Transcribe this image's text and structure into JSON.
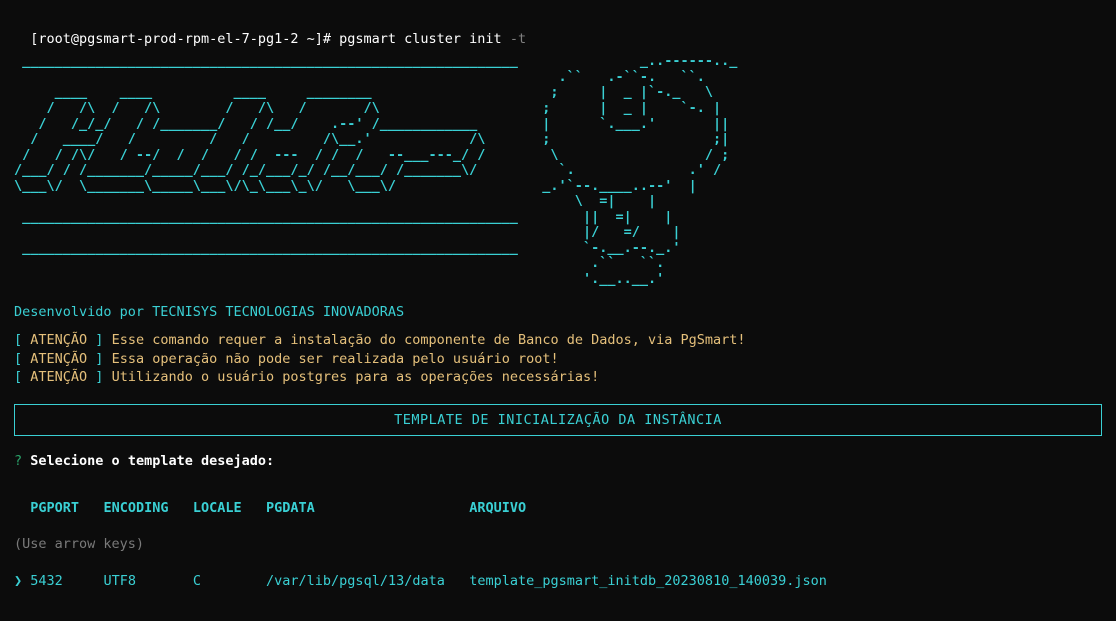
{
  "prompt": {
    "host_segment": "[root@pgsmart-prod-rpm-el-7-pg1-2 ~]# ",
    "command_main": "pgsmart cluster init ",
    "command_flag": "-t"
  },
  "ascii_art": " _____________________________________________________________               _..------.._\n                                                                   .``   .-``-.   ``.\n     ____    ____          ____     ________                      ;     |  _ |`-._   \\\n    /   /\\  /   /\\        /   /\\   /       /\\                    ;      |  _ |    `-. |\n   /   /_/_/   / /_______/   / /__/    .--' /____________        |      `.___.'       ||\n  /   ____/   /         /   /         /\\__.'            /\\       ;                    ;|\n /   / /\\/   / --/  /  /   / /  ---  / /  /   --___---_/ /        \\                  / ;\n/___/ / /_______/_____/___/ /_/___/_/ /__/___/ /_______\\/          `.              .' /\n\\___\\/  \\_______\\_____\\___\\/\\_\\___\\_\\/   \\___\\/                  _.'`--.____..--'  |\n                                                                     \\  =|    |\n _____________________________________________________________        ||  =|    |\n                                                                      |/   =/    |\n _____________________________________________________________        `-.__.--._.'\n                                                                       .``   ``.\n                                                                      '.__..__.'",
  "developed_by": "Desenvolvido por TECNISYS TECNOLOGIAS INOVADORAS",
  "warnings": {
    "tag": "ATENÇÃO",
    "lines": [
      "Esse comando requer a instalação do componente de Banco de Dados, via PgSmart!",
      "Essa operação não pode ser realizada pelo usuário root!",
      "Utilizando o usuário postgres para as operações necessárias!"
    ]
  },
  "section_title": "TEMPLATE DE INICIALIZAÇÃO DA INSTÂNCIA",
  "question": {
    "marker": "?",
    "text": "Selecione o template desejado:"
  },
  "table": {
    "headers": {
      "pgport": "PGPORT",
      "encoding": "ENCODING",
      "locale": "LOCALE",
      "pgdata": "PGDATA",
      "arquivo": "ARQUIVO"
    },
    "hint": "(Use arrow keys)",
    "selected_marker": "❯",
    "row": {
      "pgport": "5432",
      "encoding": "UTF8",
      "locale": "C",
      "pgdata": "/var/lib/pgsql/13/data",
      "arquivo": "template_pgsmart_initdb_20230810_140039.json"
    }
  },
  "colors": {
    "background": "#0c0c0c",
    "cyan": "#3ad0d4",
    "yellow": "#e5c07b",
    "white": "#ffffff",
    "grey": "#808080",
    "hint_grey": "#7a7a7a",
    "green": "#2aa36a"
  }
}
